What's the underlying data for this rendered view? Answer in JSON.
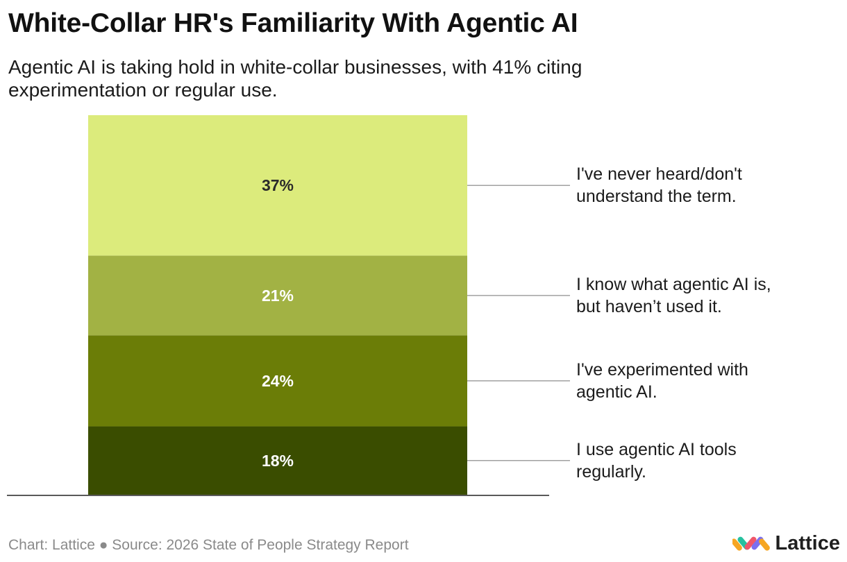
{
  "header": {
    "title": "White-Collar HR's Familiarity With Agentic AI",
    "subtitle": "Agentic AI is taking hold in white-collar businesses, with 41% citing experimentation or regular use."
  },
  "footer": {
    "credit": "Chart: Lattice",
    "separator": "●",
    "source": "Source: 2026 State of People Strategy Report"
  },
  "brand": {
    "name": "Lattice",
    "logo_icon": "lattice-logo-icon"
  },
  "chart_data": {
    "type": "bar",
    "stacked": true,
    "categories": [
      ""
    ],
    "series": [
      {
        "name": "I use agentic AI tools regularly.",
        "values": [
          18
        ],
        "label": "18%",
        "color": "#3a4d00"
      },
      {
        "name": "I've experimented with agentic AI.",
        "values": [
          24
        ],
        "label": "24%",
        "color": "#6b7d07"
      },
      {
        "name": "I know what agentic AI is, but haven’t used it.",
        "values": [
          21
        ],
        "label": "21%",
        "color": "#a2b244"
      },
      {
        "name": "I've never heard/don't understand the term.",
        "values": [
          37
        ],
        "label": "37%",
        "color": "#dceb7c"
      }
    ],
    "ylim": [
      0,
      100
    ],
    "grid": false,
    "legend": "right, direct labels with leader lines"
  }
}
